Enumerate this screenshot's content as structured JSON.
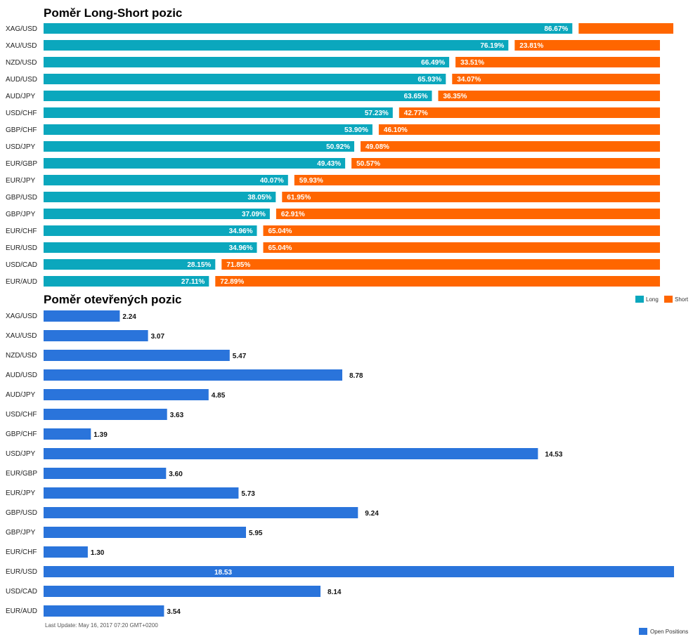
{
  "colors": {
    "long": "#0ba7bd",
    "short": "#ff6600",
    "open": "#2a74db"
  },
  "legend": {
    "long": "Long",
    "short": "Short",
    "open": "Open Positions"
  },
  "footer": "Last Update: May 16, 2017 07:20 GMT+0200",
  "chart_data": [
    {
      "type": "bar",
      "orientation": "horizontal",
      "stacked": true,
      "title": "Poměr Long-Short pozic",
      "categories": [
        "XAG/USD",
        "XAU/USD",
        "NZD/USD",
        "AUD/USD",
        "AUD/JPY",
        "USD/CHF",
        "GBP/CHF",
        "USD/JPY",
        "EUR/GBP",
        "EUR/JPY",
        "GBP/USD",
        "GBP/JPY",
        "EUR/CHF",
        "EUR/USD",
        "USD/CAD",
        "EUR/AUD"
      ],
      "series": [
        {
          "name": "Long",
          "values": [
            86.67,
            76.19,
            66.49,
            65.93,
            63.65,
            57.23,
            53.9,
            50.92,
            49.43,
            40.07,
            38.05,
            37.09,
            34.96,
            34.96,
            28.15,
            27.11
          ],
          "labels": [
            "86.67%",
            "76.19%",
            "66.49%",
            "65.93%",
            "63.65%",
            "57.23%",
            "53.90%",
            "50.92%",
            "49.43%",
            "40.07%",
            "38.05%",
            "37.09%",
            "34.96%",
            "34.96%",
            "28.15%",
            "27.11%"
          ]
        },
        {
          "name": "Short",
          "values": [
            13.33,
            23.81,
            33.51,
            34.07,
            36.35,
            42.77,
            46.1,
            49.08,
            50.57,
            59.93,
            61.95,
            62.91,
            65.04,
            65.04,
            71.85,
            72.89
          ],
          "labels": [
            "",
            "23.81%",
            "33.51%",
            "34.07%",
            "36.35%",
            "42.77%",
            "46.10%",
            "49.08%",
            "50.57%",
            "59.93%",
            "61.95%",
            "62.91%",
            "65.04%",
            "65.04%",
            "71.85%",
            "72.89%"
          ]
        }
      ],
      "xlim": [
        0,
        100
      ],
      "legend_position": "bottom-right"
    },
    {
      "type": "bar",
      "orientation": "horizontal",
      "title": "Poměr otevřených pozic",
      "categories": [
        "XAG/USD",
        "XAU/USD",
        "NZD/USD",
        "AUD/USD",
        "AUD/JPY",
        "USD/CHF",
        "GBP/CHF",
        "USD/JPY",
        "EUR/GBP",
        "EUR/JPY",
        "GBP/USD",
        "GBP/JPY",
        "EUR/CHF",
        "EUR/USD",
        "USD/CAD",
        "EUR/AUD"
      ],
      "series": [
        {
          "name": "Open Positions",
          "values": [
            2.24,
            3.07,
            5.47,
            8.78,
            4.85,
            3.63,
            1.39,
            14.53,
            3.6,
            5.73,
            9.24,
            5.95,
            1.3,
            18.53,
            8.14,
            3.54
          ],
          "labels": [
            "2.24",
            "3.07",
            "5.47",
            "8.78",
            "4.85",
            "3.63",
            "1.39",
            "14.53",
            "3.60",
            "5.73",
            "9.24",
            "5.95",
            "1.30",
            "18.53",
            "8.14",
            "3.54"
          ]
        }
      ],
      "xlim": [
        0,
        18.53
      ],
      "legend_position": "bottom-right"
    }
  ]
}
